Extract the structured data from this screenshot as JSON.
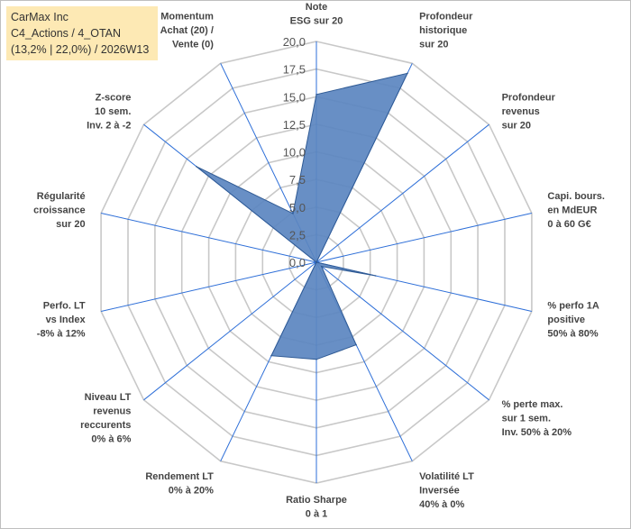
{
  "header": {
    "company": "CarMax Inc",
    "portfolio": "C4_Actions / 4_OTAN",
    "details": "(13,2% | 22,0%) / 2026W13"
  },
  "chart_data": {
    "type": "radar",
    "rmin": 0,
    "rmax": 20,
    "tick_step": 2.5,
    "ticks": [
      "0,0",
      "2,5",
      "5,0",
      "7,5",
      "10,0",
      "12,5",
      "15,0",
      "17,5",
      "20,0"
    ],
    "axes": [
      [
        "Note",
        "ESG sur 20"
      ],
      [
        "Profondeur",
        "historique",
        "sur 20"
      ],
      [
        "Profondeur",
        "revenus",
        "sur 20"
      ],
      [
        "Capi. bours.",
        "en MdEUR",
        "0 à 60 G€"
      ],
      [
        "% perfo 1A",
        "positive",
        "50% à 80%"
      ],
      [
        "% perte max.",
        "sur 1 sem.",
        "Inv. 50% à 20%"
      ],
      [
        "Volatilité LT",
        "Inversée",
        "40% à 0%"
      ],
      [
        "Ratio Sharpe",
        "0 à 1"
      ],
      [
        "Rendement LT",
        "0% à 20%"
      ],
      [
        "Niveau LT",
        "revenus",
        "reccurents",
        "0% à 6%"
      ],
      [
        "Perfo. LT",
        "vs Index",
        "-8% à 12%"
      ],
      [
        "Régularité",
        "croissance",
        "sur 20"
      ],
      [
        "Z-score",
        "10 sem.",
        "Inv. 2 à -2"
      ],
      [
        "Momentum",
        "Achat (20) /",
        "Vente (0)"
      ]
    ],
    "series": [
      {
        "name": "CarMax Inc",
        "values": [
          15.2,
          19.0,
          0.0,
          0.0,
          5.5,
          0.6,
          8.3,
          8.8,
          9.4,
          0.0,
          0.0,
          0.0,
          13.9,
          4.9
        ]
      }
    ],
    "colors": {
      "fill": "#5b86c0",
      "stroke": "#2f5a94",
      "grid": "#c8c8c8",
      "spoke": "#2e6fd8"
    }
  }
}
